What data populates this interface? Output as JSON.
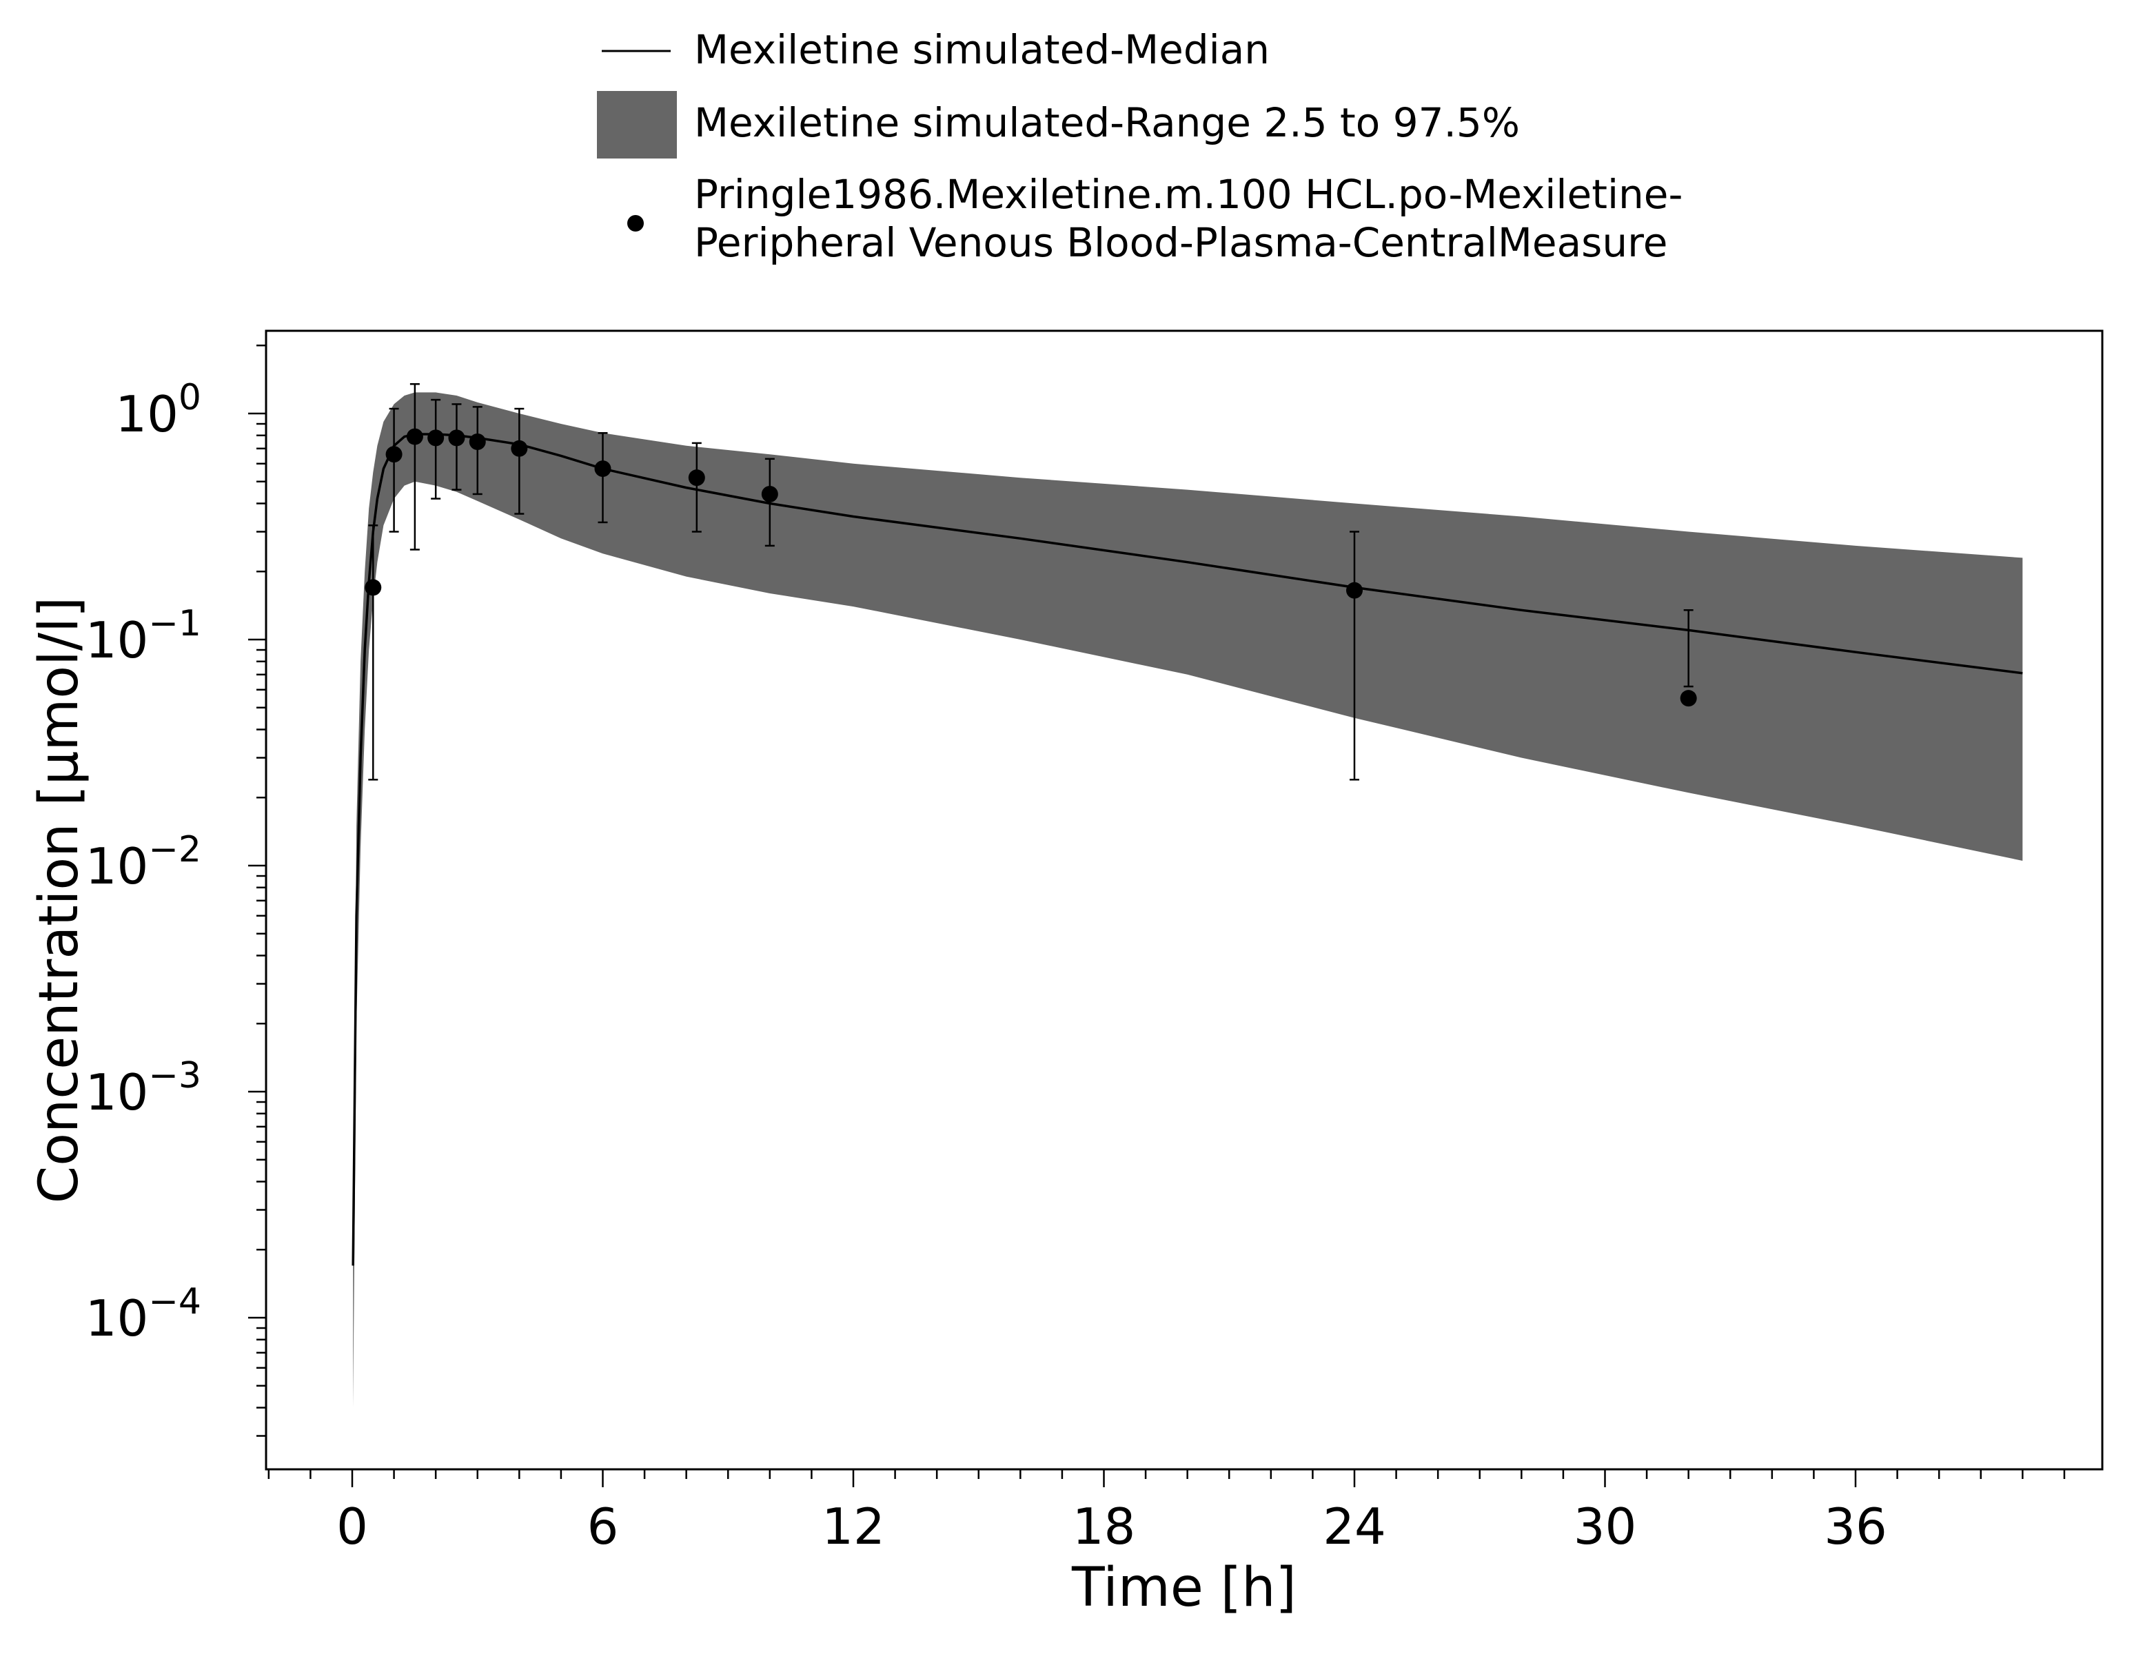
{
  "chart_data": {
    "type": "line",
    "title": "",
    "xlabel": "Time [h]",
    "ylabel": "Concentration [µmol/l]",
    "x_scale": "linear",
    "y_scale": "log",
    "xlim": [
      -2,
      42
    ],
    "ylim": [
      2e-05,
      2.5
    ],
    "x_ticks": [
      0,
      6,
      12,
      18,
      24,
      30,
      36
    ],
    "x_tick_labels": [
      "0",
      "6",
      "12",
      "18",
      "24",
      "30",
      "36"
    ],
    "y_ticks": [
      0.0001,
      0.001,
      0.01,
      0.1,
      1
    ],
    "y_tick_labels": [
      {
        "base": "10",
        "exp": "−4"
      },
      {
        "base": "10",
        "exp": "−3"
      },
      {
        "base": "10",
        "exp": "−2"
      },
      {
        "base": "10",
        "exp": "−1"
      },
      {
        "base": "10",
        "exp": "0"
      }
    ],
    "legend_position": "top",
    "grid": false,
    "colors": {
      "median": "#000000",
      "range": "#666666",
      "observed": "#000000"
    },
    "series": [
      {
        "name": "Mexiletine simulated-Median",
        "type": "line",
        "x": [
          0.02,
          0.1,
          0.2,
          0.3,
          0.4,
          0.5,
          0.6,
          0.75,
          1.0,
          1.25,
          1.5,
          2.0,
          2.5,
          3.0,
          4.0,
          5.0,
          6.0,
          8.0,
          10.0,
          12.0,
          16.0,
          20.0,
          24.0,
          28.0,
          32.0,
          36.0,
          40.0
        ],
        "y": [
          0.00017,
          0.006,
          0.03,
          0.09,
          0.18,
          0.3,
          0.42,
          0.57,
          0.72,
          0.79,
          0.81,
          0.81,
          0.8,
          0.78,
          0.73,
          0.65,
          0.57,
          0.47,
          0.4,
          0.35,
          0.28,
          0.22,
          0.17,
          0.135,
          0.11,
          0.088,
          0.071
        ]
      },
      {
        "name": "Mexiletine simulated-Range 2.5 to 97.5%",
        "type": "area",
        "x": [
          0.02,
          0.1,
          0.2,
          0.3,
          0.4,
          0.5,
          0.6,
          0.75,
          1.0,
          1.25,
          1.5,
          2.0,
          2.5,
          3.0,
          4.0,
          5.0,
          6.0,
          8.0,
          10.0,
          12.0,
          16.0,
          20.0,
          24.0,
          28.0,
          32.0,
          36.0,
          40.0
        ],
        "lower": [
          4e-05,
          0.002,
          0.012,
          0.04,
          0.09,
          0.15,
          0.22,
          0.32,
          0.42,
          0.48,
          0.5,
          0.48,
          0.45,
          0.41,
          0.34,
          0.28,
          0.24,
          0.19,
          0.16,
          0.14,
          0.1,
          0.07,
          0.045,
          0.03,
          0.021,
          0.015,
          0.0105
        ],
        "upper": [
          0.00017,
          0.015,
          0.08,
          0.2,
          0.38,
          0.55,
          0.72,
          0.92,
          1.1,
          1.2,
          1.24,
          1.24,
          1.2,
          1.12,
          1.0,
          0.9,
          0.82,
          0.72,
          0.66,
          0.6,
          0.52,
          0.46,
          0.4,
          0.35,
          0.3,
          0.26,
          0.23
        ]
      },
      {
        "name": "Pringle1986.Mexiletine.m.100 HCL.po-Mexiletine-Peripheral Venous Blood-Plasma-CentralMeasure",
        "name_lines": [
          "Pringle1986.Mexiletine.m.100 HCL.po-Mexiletine-",
          "Peripheral Venous Blood-Plasma-CentralMeasure"
        ],
        "type": "scatter",
        "points": [
          {
            "x": 0.5,
            "y": 0.17,
            "err_low": 0.024,
            "err_high": 0.32
          },
          {
            "x": 1.0,
            "y": 0.66,
            "err_low": 0.3,
            "err_high": 1.05
          },
          {
            "x": 1.5,
            "y": 0.79,
            "err_low": 0.25,
            "err_high": 1.35
          },
          {
            "x": 2.0,
            "y": 0.78,
            "err_low": 0.42,
            "err_high": 1.15
          },
          {
            "x": 2.5,
            "y": 0.78,
            "err_low": 0.46,
            "err_high": 1.1
          },
          {
            "x": 3.0,
            "y": 0.75,
            "err_low": 0.44,
            "err_high": 1.07
          },
          {
            "x": 4.0,
            "y": 0.7,
            "err_low": 0.36,
            "err_high": 1.05
          },
          {
            "x": 6.0,
            "y": 0.57,
            "err_low": 0.33,
            "err_high": 0.82
          },
          {
            "x": 8.25,
            "y": 0.52,
            "err_low": 0.3,
            "err_high": 0.74
          },
          {
            "x": 10.0,
            "y": 0.44,
            "err_low": 0.26,
            "err_high": 0.63
          },
          {
            "x": 24.0,
            "y": 0.165,
            "err_low": 0.024,
            "err_high": 0.3
          },
          {
            "x": 32.0,
            "y": 0.055,
            "err_low": 0.062,
            "err_high": 0.135
          }
        ]
      }
    ]
  }
}
